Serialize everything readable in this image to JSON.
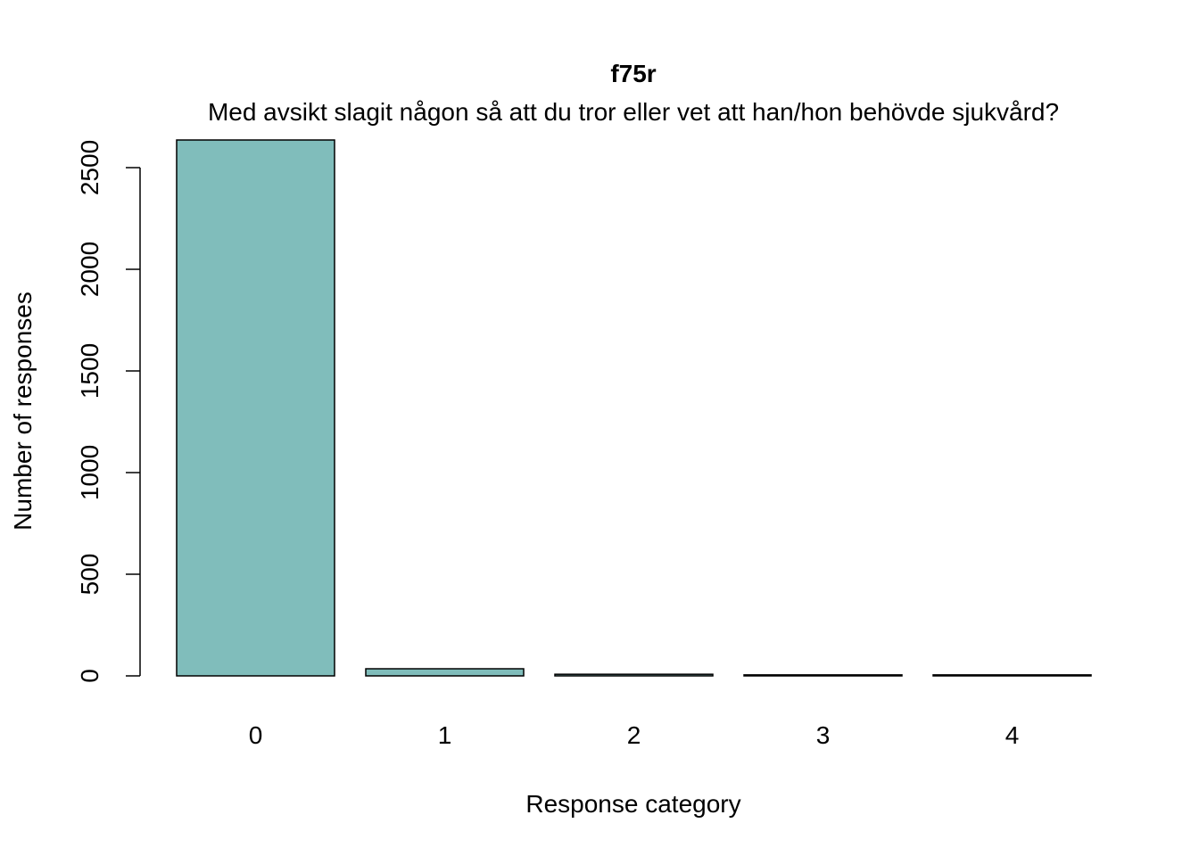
{
  "chart_data": {
    "type": "bar",
    "title": "f75r",
    "subtitle": "Med avsikt slagit någon så att du tror eller vet att han/hon behövde sjukvård?",
    "xlabel": "Response category",
    "ylabel": "Number of responses",
    "categories": [
      "0",
      "1",
      "2",
      "3",
      "4"
    ],
    "values": [
      2636,
      35,
      8,
      5,
      5
    ],
    "ylim": [
      0,
      2636
    ],
    "yticks": [
      0,
      500,
      1000,
      1500,
      2000,
      2500
    ],
    "ytick_labels": [
      "0",
      "500",
      "1000",
      "1500",
      "2000",
      "2500"
    ],
    "bar_color": "#80bdbb",
    "grid": false,
    "legend": "none"
  }
}
